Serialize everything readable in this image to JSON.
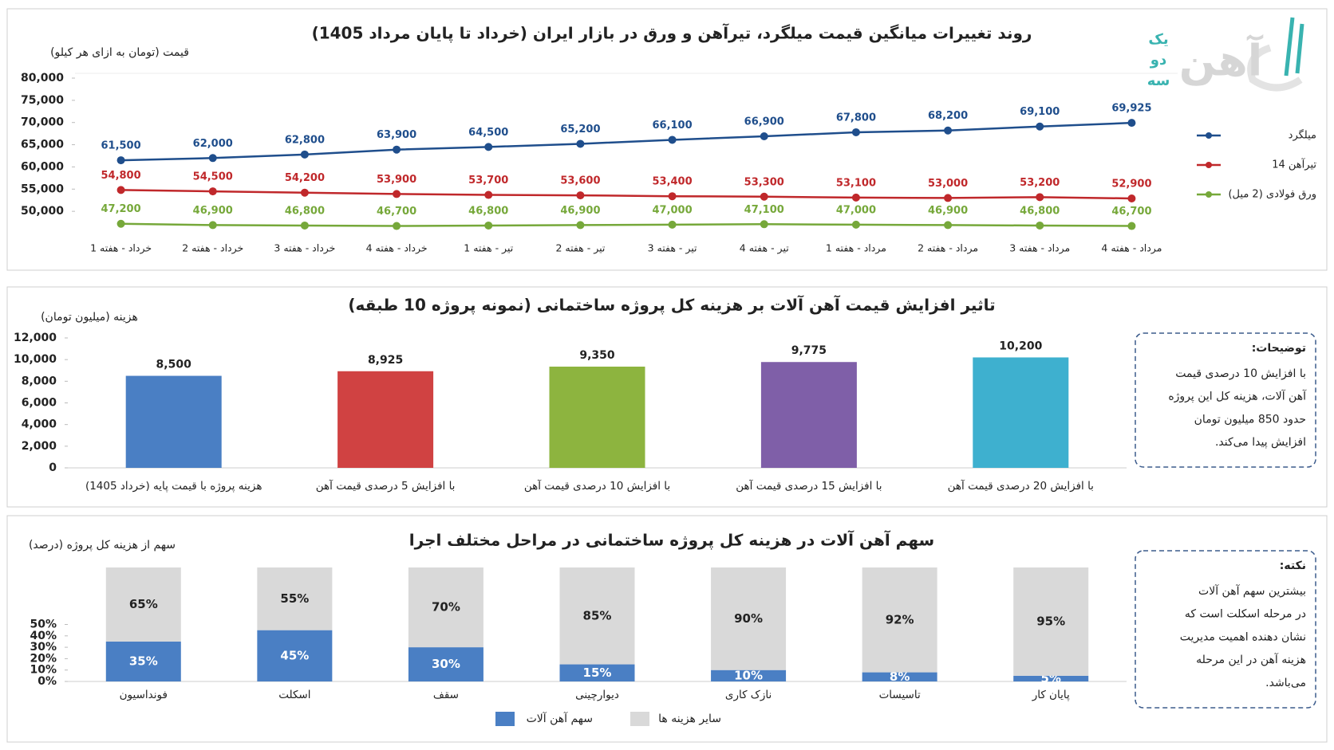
{
  "logo": {
    "name": "آهن",
    "tagline": [
      "یک",
      "دو",
      "سه"
    ]
  },
  "chart_data": [
    {
      "type": "line",
      "title": "روند تغییرات میانگین قیمت میلگرد، تیرآهن و ورق در بازار ایران (خرداد تا پایان مرداد 1405)",
      "y_label": "قیمت (تومان به ازای هر کیلو)",
      "categories": [
        "خرداد - هفته 1",
        "خرداد - هفته 2",
        "خرداد - هفته 3",
        "خرداد - هفته 4",
        "تیر - هفته 1",
        "تیر - هفته 2",
        "تیر - هفته 3",
        "تیر - هفته 4",
        "مرداد - هفته 1",
        "مرداد - هفته 2",
        "مرداد - هفته 3",
        "مرداد - هفته 4"
      ],
      "series": [
        {
          "name": "میلگرد",
          "color": "#1f4e8c",
          "values": [
            61500,
            62000,
            62800,
            63900,
            64500,
            65200,
            66100,
            66900,
            67800,
            68200,
            69100,
            69925
          ],
          "value_labels": [
            "61,500",
            "62,000",
            "62,800",
            "63,900",
            "64,500",
            "65,200",
            "66,100",
            "66,900",
            "67,800",
            "68,200",
            "69,100",
            "69,925"
          ]
        },
        {
          "name": "تیرآهن 14",
          "color": "#c0282b",
          "values": [
            54800,
            54500,
            54200,
            53900,
            53700,
            53600,
            53400,
            53300,
            53100,
            53000,
            53200,
            52900
          ],
          "value_labels": [
            "54,800",
            "54,500",
            "54,200",
            "53,900",
            "53,700",
            "53,600",
            "53,400",
            "53,300",
            "53,100",
            "53,000",
            "53,200",
            "52,900"
          ]
        },
        {
          "name": "ورق فولادی (2 میل)",
          "color": "#76a83a",
          "values": [
            47200,
            46900,
            46800,
            46700,
            46800,
            46900,
            47000,
            47100,
            47000,
            46900,
            46800,
            46700
          ],
          "value_labels": [
            "47,200",
            "46,900",
            "46,800",
            "46,700",
            "46,800",
            "46,900",
            "47,000",
            "47,100",
            "47,000",
            "46,900",
            "46,800",
            "46,700"
          ]
        }
      ],
      "ylim": [
        45000,
        80000
      ],
      "yticks": [
        {
          "value": 50000,
          "label": "50,000"
        },
        {
          "value": 55000,
          "label": "55,000"
        },
        {
          "value": 60000,
          "label": "60,000"
        },
        {
          "value": 65000,
          "label": "65,000"
        },
        {
          "value": 70000,
          "label": "70,000"
        },
        {
          "value": 75000,
          "label": "75,000"
        },
        {
          "value": 80000,
          "label": "80,000"
        }
      ],
      "legend": "right",
      "grid": false
    },
    {
      "type": "bar",
      "title": "تاثیر افزایش قیمت آهن آلات بر هزینه کل پروژه ساختمانی (نمونه پروژه 10 طبقه)",
      "y_label": "هزینه (میلیون تومان)",
      "categories": [
        "هزینه پروژه با قیمت پایه (خرداد 1405)",
        "با افزایش 5 درصدی قیمت آهن",
        "با افزایش 10 درصدی قیمت آهن",
        "با افزایش 15 درصدی قیمت آهن",
        "با افزایش 20 درصدی قیمت آهن"
      ],
      "values": [
        8500,
        8925,
        9350,
        9775,
        10200
      ],
      "value_labels": [
        "8,500",
        "8,925",
        "9,350",
        "9,775",
        "10,200"
      ],
      "colors": [
        "#4a7fc4",
        "#d04242",
        "#8db43f",
        "#7f5fa8",
        "#3eb0cf"
      ],
      "ylim": [
        0,
        12000
      ],
      "yticks": [
        0,
        {
          "value": 2000,
          "label": "2,000"
        },
        {
          "value": 4000,
          "label": "4,000"
        },
        {
          "value": 6000,
          "label": "6,000"
        },
        {
          "value": 8000,
          "label": "8,000"
        },
        {
          "value": 10000,
          "label": "10,000"
        },
        {
          "value": 12000,
          "label": "12,000"
        }
      ],
      "grid": false,
      "note": {
        "title": "توضیحات:",
        "lines": [
          "با افزایش 10 درصدی قیمت",
          "آهن آلات، هزینه کل این پروژه",
          "حدود 850 میلیون تومان",
          "افزایش پیدا می‌کند."
        ]
      }
    },
    {
      "type": "stacked_bar",
      "title": "سهم آهن آلات در هزینه کل پروژه ساختمانی در مراحل مختلف اجرا",
      "y_label": "سهم از هزینه کل پروژه (درصد)",
      "categories": [
        "فونداسیون",
        "اسکلت",
        "سقف",
        "دیوارچینی",
        "نازک کاری",
        "تاسیسات",
        "پایان کار"
      ],
      "series": [
        {
          "name": "سهم آهن آلات",
          "color": "#4a7fc4",
          "values": [
            35,
            45,
            30,
            15,
            10,
            8,
            5
          ],
          "value_labels": [
            "35%",
            "45%",
            "30%",
            "15%",
            "10%",
            "8%",
            "5%"
          ]
        },
        {
          "name": "سایر هزینه ها",
          "color": "#d9d9d9",
          "values": [
            65,
            55,
            70,
            85,
            90,
            92,
            95
          ],
          "value_labels": [
            "65%",
            "55%",
            "70%",
            "85%",
            "90%",
            "92%",
            "95%"
          ]
        }
      ],
      "ylim": [
        0,
        100
      ],
      "yticks": [
        {
          "value": 0,
          "label": "0%"
        },
        {
          "value": 10,
          "label": "10%"
        },
        {
          "value": 20,
          "label": "20%"
        },
        {
          "value": 30,
          "label": "30%"
        },
        {
          "value": 40,
          "label": "40%"
        },
        {
          "value": 50,
          "label": "50%"
        }
      ],
      "legend": "bottom",
      "grid": false,
      "note": {
        "title": "نکته:",
        "lines": [
          "بیشترین سهم آهن آلات",
          "در مرحله اسکلت است که",
          "نشان دهنده اهمیت مدیریت",
          "هزینه آهن در این مرحله",
          "می‌باشد."
        ]
      }
    }
  ]
}
